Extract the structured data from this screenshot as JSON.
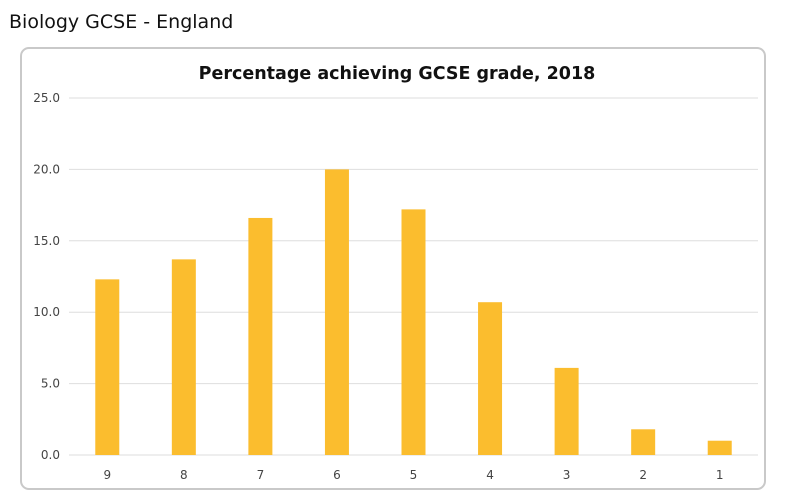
{
  "page": {
    "heading": "Biology GCSE - England"
  },
  "colors": {
    "bar": "#fbbd2e",
    "grid": "#dedede",
    "card_border": "#c9c9c9"
  },
  "chart_data": {
    "type": "bar",
    "title": "Percentage achieving GCSE grade, 2018",
    "xlabel": "",
    "ylabel": "",
    "categories": [
      "9",
      "8",
      "7",
      "6",
      "5",
      "4",
      "3",
      "2",
      "1"
    ],
    "values": [
      12.3,
      13.7,
      16.6,
      20.0,
      17.2,
      10.7,
      6.1,
      1.8,
      1.0
    ],
    "ylim": [
      0,
      25
    ],
    "yticks": [
      "0.0",
      "5.0",
      "10.0",
      "15.0",
      "20.0",
      "25.0"
    ],
    "grid": true,
    "legend": "none"
  }
}
